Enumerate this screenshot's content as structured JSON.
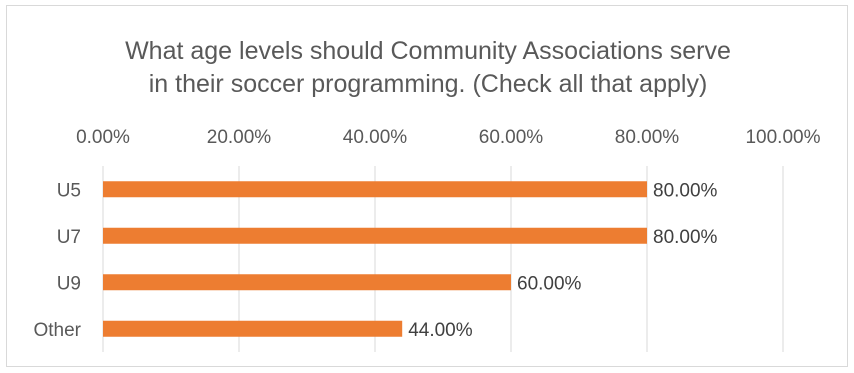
{
  "chart_data": {
    "type": "bar",
    "orientation": "horizontal",
    "title": [
      "What age levels should Community Associations serve",
      "in their soccer programming.  (Check all that apply)"
    ],
    "categories": [
      "U5",
      "U7",
      "U9",
      "Other"
    ],
    "values": [
      0.8,
      0.8,
      0.6,
      0.44
    ],
    "data_labels": [
      "80.00%",
      "80.00%",
      "60.00%",
      "44.00%"
    ],
    "xlim": [
      0,
      1
    ],
    "x_ticks": [
      0,
      0.2,
      0.4,
      0.6,
      0.8,
      1.0
    ],
    "x_tick_labels": [
      "0.00%",
      "20.00%",
      "40.00%",
      "60.00%",
      "80.00%",
      "100.00%"
    ],
    "x_axis_position": "top",
    "grid": true,
    "legend": "none",
    "bar_color": "#ed7d31"
  }
}
